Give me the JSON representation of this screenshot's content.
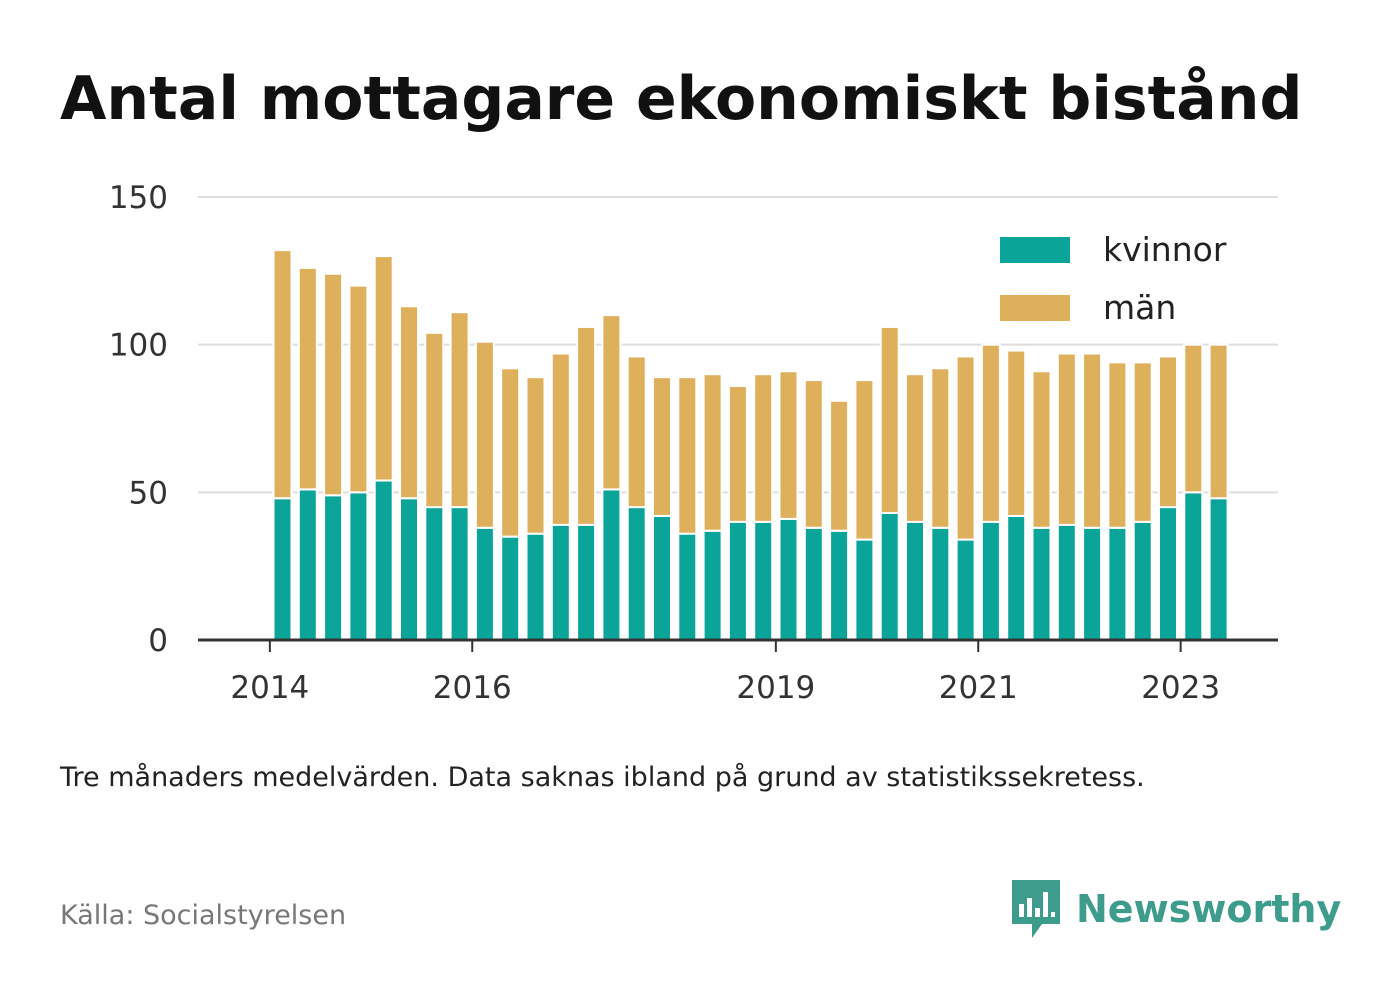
{
  "title": "Antal mottagare ekonomiskt bistånd",
  "note": "Tre månaders medelvärden. Data saknas ibland på grund av statistikssekretess.",
  "source": "Källa: Socialstyrelsen",
  "brand": {
    "name": "Newsworthy",
    "icon": "newsworthy-logo-icon",
    "color": "#3e9c8c"
  },
  "chart_data": {
    "type": "bar",
    "stacked": true,
    "ylim": [
      0,
      150
    ],
    "yticks": [
      0,
      50,
      100,
      150
    ],
    "grid": true,
    "legend_position": "top-right",
    "x_tick_labels": [
      {
        "label": "2014",
        "index": -0.5
      },
      {
        "label": "2016",
        "index": 7.5
      },
      {
        "label": "2019",
        "index": 19.5
      },
      {
        "label": "2021",
        "index": 27.5
      },
      {
        "label": "2023",
        "index": 35.5
      }
    ],
    "series": [
      {
        "name": "kvinnor",
        "color": "#0aa598",
        "values": [
          48,
          51,
          49,
          50,
          54,
          48,
          45,
          45,
          38,
          35,
          36,
          39,
          39,
          51,
          45,
          42,
          36,
          37,
          40,
          40,
          41,
          38,
          37,
          34,
          43,
          40,
          38,
          34,
          40,
          42,
          38,
          39,
          38,
          38,
          40,
          45,
          50,
          48
        ]
      },
      {
        "name": "män",
        "color": "#deb05c",
        "values": [
          84,
          75,
          75,
          70,
          76,
          65,
          59,
          66,
          63,
          57,
          53,
          58,
          67,
          59,
          51,
          47,
          53,
          53,
          46,
          50,
          50,
          50,
          44,
          54,
          63,
          50,
          54,
          62,
          60,
          56,
          53,
          58,
          59,
          56,
          54,
          51,
          50,
          52
        ]
      }
    ]
  }
}
